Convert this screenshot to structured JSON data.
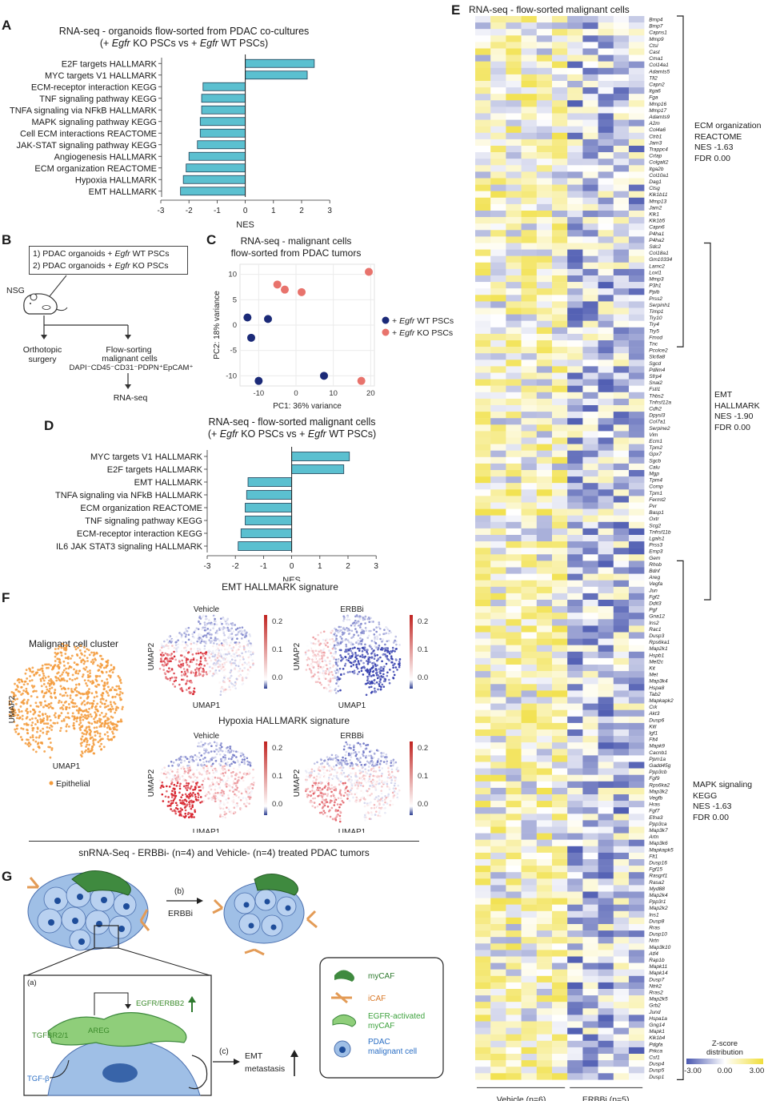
{
  "panels": {
    "A": {
      "letter": "A",
      "title_line1": "RNA-seq - organoids flow-sorted from PDAC co-cultures",
      "title_line2": "(+ Egfr KO PSCs vs + Egfr WT PSCs)"
    },
    "B": {
      "letter": "B",
      "condition1": "1) PDAC organoids + Egfr WT PSCs",
      "condition2": "2) PDAC organoids + Egfr KO PSCs",
      "mouse_label": "NSG",
      "step_left": "Orthotopic surgery",
      "step_right_1": "Flow-sorting",
      "step_right_2": "malignant cells",
      "markers": "DAPI⁻CD45⁻CD31⁻PDPN⁺EpCAM⁺",
      "final": "RNA-seq"
    },
    "C": {
      "letter": "C",
      "title_line1": "RNA-seq - malignant cells",
      "title_line2": "flow-sorted from PDAC tumors"
    },
    "D": {
      "letter": "D",
      "title_line1": "RNA-seq - flow-sorted malignant cells",
      "title_line2": "(+ Egfr KO PSCs  vs + Egfr WT PSCs)"
    },
    "E": {
      "letter": "E",
      "title": "RNA-seq - flow-sorted malignant cells",
      "group1": "Vehicle (n=6)",
      "group2": "ERBBi (n=5)",
      "annot1": [
        "ECM organization",
        "REACTOME",
        "NES -1.63",
        "FDR 0.00"
      ],
      "annot2": [
        "EMT",
        "HALLMARK",
        "NES -1.90",
        "FDR 0.00"
      ],
      "annot3": [
        "MAPK signaling",
        "KEGG",
        "NES -1.63",
        "FDR 0.00"
      ],
      "scale_title_1": "Z-score",
      "scale_title_2": "distribution",
      "scale_ticks": [
        "-3.00",
        "0.00",
        "3.00"
      ]
    },
    "F": {
      "letter": "F",
      "cluster_title": "Malignant cell cluster",
      "legend": "Epithelial",
      "emt_title": "EMT HALLMARK signature",
      "hyp_title": "Hypoxia HALLMARK signature",
      "vehicle": "Vehicle",
      "erbbi": "ERBBi",
      "umap1": "UMAP1",
      "umap2": "UMAP2",
      "cbar_ticks": [
        "0.2",
        "0.1",
        "0.0"
      ],
      "footer": "snRNA-Seq - ERBBi- (n=4) and Vehicle- (n=4) treated PDAC tumors"
    },
    "G": {
      "letter": "G",
      "step_b": "(b)",
      "drug": "ERBBi",
      "step_a": "(a)",
      "step_c": "(c)",
      "areg": "AREG",
      "egfr": "EGFR/ERBB2",
      "tgfbr": "TGFBR2/1",
      "tgfb": "TGF-β",
      "emt": "EMT",
      "metastasis": "metastasis",
      "legend": [
        "myCAF",
        "iCAF",
        "EGFR-activated myCAF",
        "PDAC malignant cell"
      ]
    }
  },
  "chart_data": [
    {
      "panel": "A",
      "type": "bar",
      "orientation": "horizontal",
      "categories": [
        "E2F targets HALLMARK",
        "MYC targets V1 HALLMARK",
        "ECM-receptor interaction KEGG",
        "TNF signaling pathway KEGG",
        "TNFA signaling via NFkB HALLMARK",
        "MAPK signaling pathway KEGG",
        "Cell ECM interactions REACTOME",
        "JAK-STAT signaling pathway KEGG",
        "Angiogenesis HALLMARK",
        "ECM organization REACTOME",
        "Hypoxia HALLMARK",
        "EMT HALLMARK"
      ],
      "values": [
        2.45,
        2.2,
        -1.5,
        -1.55,
        -1.55,
        -1.6,
        -1.6,
        -1.7,
        -2.0,
        -2.1,
        -2.2,
        -2.3
      ],
      "xlabel": "NES",
      "xlim": [
        -3,
        3
      ],
      "xticks": [
        "-3",
        "-2",
        "-1",
        "0",
        "1",
        "2",
        "3"
      ],
      "color": "#5bc0d0"
    },
    {
      "panel": "C",
      "type": "scatter",
      "xlabel": "PC1: 36% variance",
      "ylabel": "PC2: 18% variance",
      "xlim": [
        -15,
        21
      ],
      "ylim": [
        -12,
        12
      ],
      "xticks": [
        "-10",
        "0",
        "10",
        "20"
      ],
      "yticks": [
        "10",
        "5",
        "0",
        "-5",
        "-10"
      ],
      "series": [
        {
          "name": "+ Egfr WT PSCs",
          "color": "#1b2a78",
          "x": [
            -13,
            -12,
            -7.5,
            -10,
            7.5
          ],
          "y": [
            1.5,
            -2.5,
            1.2,
            -11,
            -10
          ]
        },
        {
          "name": "+ Egfr KO PSCs",
          "color": "#e8736c",
          "x": [
            -5,
            -3,
            1.5,
            19.5,
            17.5
          ],
          "y": [
            8,
            7,
            6.5,
            10.5,
            -11
          ]
        }
      ]
    },
    {
      "panel": "D",
      "type": "bar",
      "orientation": "horizontal",
      "categories": [
        "MYC targets V1 HALLMARK",
        "E2F targets HALLMARK",
        "EMT HALLMARK",
        "TNFA signaling via NFkB HALLMARK",
        "ECM organization REACTOME",
        "TNF signaling pathway KEGG",
        "ECM-receptor interaction KEGG",
        "IL6 JAK STAT3 signaling HALLMARK"
      ],
      "values": [
        2.05,
        1.85,
        -1.55,
        -1.6,
        -1.65,
        -1.65,
        -1.8,
        -1.9
      ],
      "xlabel": "NES",
      "xlim": [
        -3,
        3
      ],
      "xticks": [
        "-3",
        "-2",
        "-1",
        "0",
        "1",
        "2",
        "3"
      ],
      "color": "#5bc0d0"
    },
    {
      "panel": "E",
      "type": "heatmap",
      "columns": 11,
      "groups": [
        {
          "name": "Vehicle (n=6)",
          "n": 6
        },
        {
          "name": "ERBBi (n=5)",
          "n": 5
        }
      ],
      "color_scale": {
        "low": "#4a58b0",
        "mid": "#ffffff",
        "high": "#f0de3c",
        "range": [
          -3,
          3
        ]
      },
      "genes": [
        "Bmp4",
        "Bmp7",
        "Capns1",
        "Mmp9",
        "Ctsl",
        "Cast",
        "Cma1",
        "Col14a1",
        "Adamts5",
        "Tll2",
        "Capn2",
        "Itga6",
        "Fga",
        "Mmp16",
        "Mmp17",
        "Adamts9",
        "A2m",
        "Col4a6",
        "Ctrb1",
        "Jam3",
        "Trappc4",
        "Crtap",
        "Colgalt2",
        "Itga2b",
        "Col10a1",
        "Dag1",
        "Ctsg",
        "Klk1b11",
        "Mmp13",
        "Jam2",
        "Klk1",
        "Klk1b5",
        "Capn6",
        "P4ha1",
        "P4ha2",
        "Sdc2",
        "Col18a1",
        "Gm10334",
        "Lamc2",
        "Loxl1",
        "Mmp3",
        "P3h1",
        "Ppib",
        "Prss2",
        "Serpinh1",
        "Timp1",
        "Try10",
        "Try4",
        "Try5",
        "Fmod",
        "Tnc",
        "Pcolce2",
        "Slc6a8",
        "Sgcd",
        "Pdlim4",
        "Sfrp4",
        "Snai2",
        "Fstl1",
        "Thbs2",
        "Tnfrsf12a",
        "Cdh2",
        "Dpysl3",
        "Col7a1",
        "Serpine2",
        "Vim",
        "Ecm1",
        "Tpm2",
        "Gpx7",
        "Sgcb",
        "Calu",
        "Mgp",
        "Tpm4",
        "Comp",
        "Tpm1",
        "Fermt2",
        "Pvr",
        "Basp1",
        "Oxtr",
        "Scg2",
        "Tnfrsf11b",
        "Lgals1",
        "Prss3",
        "Emp3",
        "Gem",
        "Rhob",
        "Bdnf",
        "Areg",
        "Vegfa",
        "Jun",
        "Fgf2",
        "Ddit3",
        "Pgf",
        "Gna12",
        "Ins2",
        "Rac1",
        "Dusp3",
        "Rps6ka1",
        "Map2k1",
        "Hspb1",
        "Mef2c",
        "Kit",
        "Met",
        "Map3k4",
        "Hspa8",
        "Tab2",
        "Mapkapk2",
        "Crk",
        "Akt3",
        "Dusp6",
        "Kitl",
        "Igf1",
        "Flt4",
        "Mapk9",
        "Cacnb1",
        "Ppm1a",
        "Gadd45g",
        "Ppp3cb",
        "Fgf9",
        "Rps6ka2",
        "Map3k2",
        "Vegfb",
        "Hras",
        "Fgf7",
        "Efna3",
        "Ppp3ca",
        "Map3k7",
        "Artn",
        "Map3k6",
        "Mapkapk5",
        "Flt1",
        "Dusp16",
        "Fgf15",
        "Rasgrf1",
        "Rasa2",
        "Myd88",
        "Map2k4",
        "Ppp3r1",
        "Map2k2",
        "Ins1",
        "Dusp8",
        "Rras",
        "Dusp10",
        "Nrtn",
        "Map3k10",
        "Atf4",
        "Rap1b",
        "Mapk11",
        "Mapk14",
        "Dusp7",
        "Ntrk2",
        "Rras2",
        "Map2k5",
        "Grb2",
        "Jund",
        "Hspa1a",
        "Gng14",
        "Mapk1",
        "Klk1b4",
        "Pdgfa",
        "Prkca",
        "Csf1",
        "Dusp4",
        "Dusp5",
        "Dusp1"
      ]
    },
    {
      "panel": "F",
      "type": "scatter",
      "note": "UMAP embeddings colored by signature score",
      "colorbar_range": [
        -0.03,
        0.25
      ],
      "colorbar_ticks": [
        0.0,
        0.1,
        0.2
      ],
      "cluster_color": "#f39a3a"
    }
  ]
}
